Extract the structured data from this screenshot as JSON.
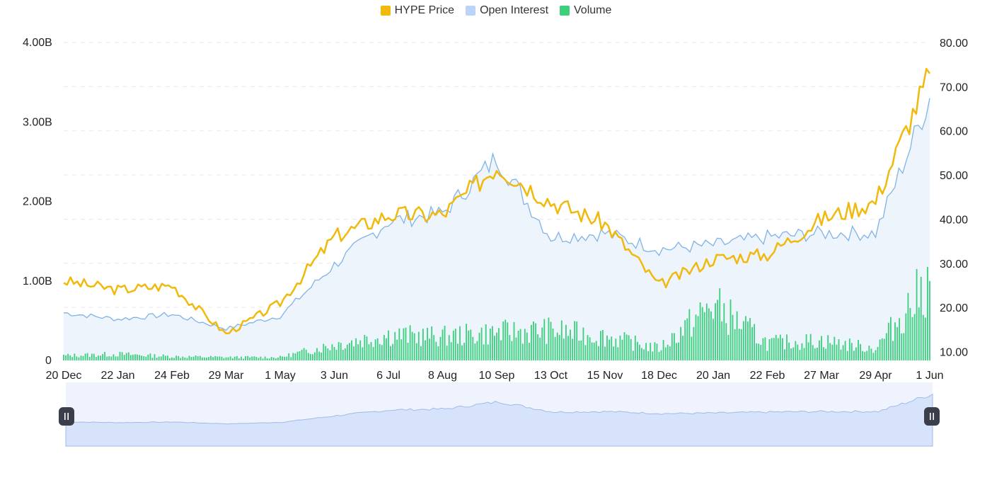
{
  "chart_data": {
    "type": "line",
    "title": "",
    "legend": {
      "placement": "top-center",
      "entries": [
        {
          "key": "price",
          "label": "HYPE Price",
          "color": "#f0b90b"
        },
        {
          "key": "oi",
          "label": "Open Interest",
          "color": "#bcd3f7"
        },
        {
          "key": "volume",
          "label": "Volume",
          "color": "#3ccf7e"
        }
      ]
    },
    "x_ticks": [
      "20 Dec",
      "22 Jan",
      "24 Feb",
      "29 Mar",
      "1 May",
      "3 Jun",
      "6 Jul",
      "8 Aug",
      "10 Sep",
      "13 Oct",
      "15 Nov",
      "18 Dec",
      "20 Jan",
      "22 Feb",
      "27 Mar",
      "29 Apr",
      "1 Jun"
    ],
    "left_axis": {
      "ticks": [
        "0",
        "1.00B",
        "2.00B",
        "3.00B",
        "4.00B"
      ],
      "range": [
        0,
        4000000000
      ]
    },
    "right_axis": {
      "ticks": [
        "10.00",
        "20.00",
        "30.00",
        "40.00",
        "50.00",
        "60.00",
        "70.00",
        "80.00"
      ],
      "range": [
        8,
        80
      ]
    },
    "grid": "horizontal dashed",
    "series": [
      {
        "name": "HYPE Price",
        "axis": "right",
        "color": "#f0b90b",
        "x": [
          "20 Dec",
          "22 Jan",
          "24 Feb",
          "29 Mar",
          "1 May",
          "3 Jun",
          "6 Jul",
          "8 Aug",
          "10 Sep",
          "13 Oct",
          "15 Nov",
          "18 Dec",
          "20 Jan",
          "22 Feb",
          "27 Mar",
          "29 Apr",
          "1 Jun"
        ],
        "values": [
          26,
          24,
          25,
          14,
          21,
          36,
          41,
          41,
          52,
          44,
          39,
          25,
          31,
          32,
          40,
          44,
          73
        ]
      },
      {
        "name": "Open Interest",
        "axis": "left",
        "color": "#7fb3e6",
        "x": [
          "20 Dec",
          "22 Jan",
          "24 Feb",
          "29 Mar",
          "1 May",
          "3 Jun",
          "6 Jul",
          "8 Aug",
          "10 Sep",
          "13 Oct",
          "15 Nov",
          "18 Dec",
          "20 Jan",
          "22 Feb",
          "27 Mar",
          "29 Apr",
          "1 Jun"
        ],
        "values": [
          600000000,
          520000000,
          580000000,
          400000000,
          560000000,
          1200000000,
          1750000000,
          1850000000,
          2550000000,
          1550000000,
          1600000000,
          1400000000,
          1450000000,
          1550000000,
          1600000000,
          1600000000,
          3300000000
        ]
      },
      {
        "name": "Volume",
        "axis": "left",
        "color": "#3ccf7e",
        "x": [
          "20 Dec",
          "22 Jan",
          "24 Feb",
          "29 Mar",
          "1 May",
          "3 Jun",
          "6 Jul",
          "8 Aug",
          "10 Sep",
          "13 Oct",
          "15 Nov",
          "18 Dec",
          "20 Jan",
          "22 Feb",
          "27 Mar",
          "29 Apr",
          "1 Jun"
        ],
        "values": [
          60000000,
          80000000,
          50000000,
          40000000,
          40000000,
          200000000,
          320000000,
          300000000,
          350000000,
          380000000,
          300000000,
          150000000,
          700000000,
          220000000,
          250000000,
          150000000,
          1000000000
        ]
      }
    ]
  },
  "slider": {
    "left_handle_icon": "pause-icon",
    "right_handle_icon": "pause-icon"
  }
}
